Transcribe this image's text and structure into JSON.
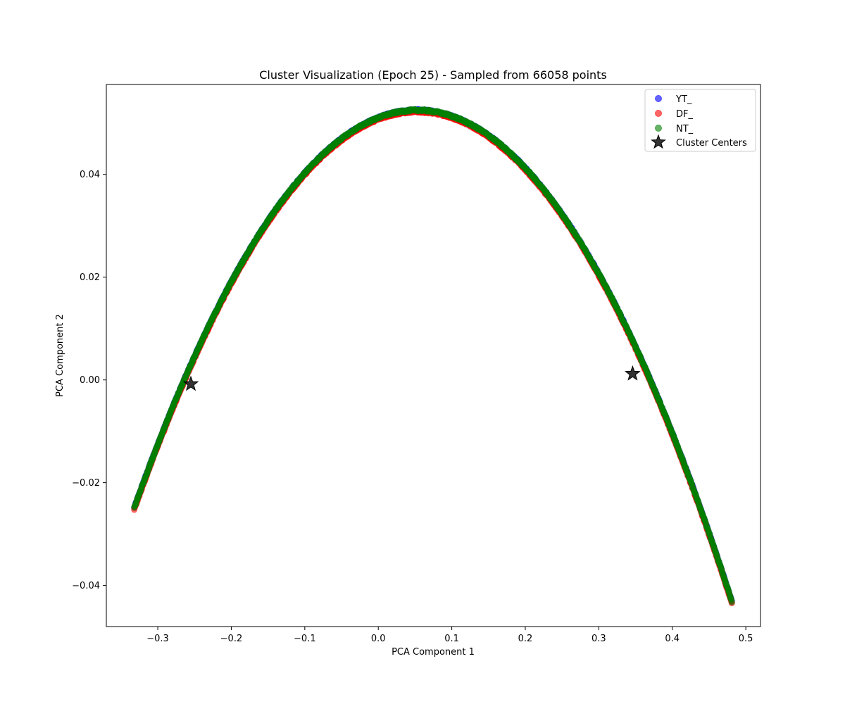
{
  "chart_data": {
    "type": "scatter",
    "title": "Cluster Visualization (Epoch 25) - Sampled from 66058 points",
    "xlabel": "PCA Component 1",
    "ylabel": "PCA Component 2",
    "xlim": [
      -0.37,
      0.52
    ],
    "ylim": [
      -0.048,
      0.0575
    ],
    "x_ticks": [
      -0.3,
      -0.2,
      -0.1,
      0.0,
      0.1,
      0.2,
      0.3,
      0.4,
      0.5
    ],
    "x_tick_labels": [
      "−0.3",
      "−0.2",
      "−0.1",
      "0.0",
      "0.1",
      "0.2",
      "0.3",
      "0.4",
      "0.5"
    ],
    "y_ticks": [
      -0.04,
      -0.02,
      0.0,
      0.02,
      0.04
    ],
    "y_tick_labels": [
      "−0.04",
      "−0.02",
      "0.00",
      "0.02",
      "0.04"
    ],
    "grid": false,
    "legend_position": "top-right",
    "series": [
      {
        "name": "YT_",
        "color": "#0000ff",
        "alpha": 0.6,
        "marker": "circle",
        "curve": {
          "x_start": -0.332,
          "x_end": 0.481,
          "apex_x": 0.053,
          "apex_y": 0.0525,
          "a": -0.5221
        }
      },
      {
        "name": "DF_",
        "color": "#ff0000",
        "alpha": 0.6,
        "marker": "circle",
        "curve": {
          "x_start": -0.332,
          "x_end": 0.481,
          "apex_x": 0.053,
          "apex_y": 0.0522,
          "a": -0.5221
        }
      },
      {
        "name": "NT_",
        "color": "#008000",
        "alpha": 0.6,
        "marker": "circle",
        "curve": {
          "x_start": -0.332,
          "x_end": 0.481,
          "apex_x": 0.053,
          "apex_y": 0.0525,
          "a": -0.5221
        }
      }
    ],
    "cluster_centers": {
      "name": "Cluster Centers",
      "color": "#000000",
      "marker": "star",
      "points": [
        {
          "x": -0.255,
          "y": -0.0008
        },
        {
          "x": 0.346,
          "y": 0.0012
        }
      ]
    }
  }
}
